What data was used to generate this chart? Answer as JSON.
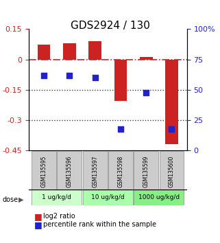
{
  "title": "GDS2924 / 130",
  "samples": [
    "GSM135595",
    "GSM135596",
    "GSM135597",
    "GSM135598",
    "GSM135599",
    "GSM135600"
  ],
  "log2_ratio": [
    0.072,
    0.082,
    0.092,
    -0.205,
    0.012,
    -0.418
  ],
  "percentile_rank": [
    62,
    62,
    60,
    18,
    48,
    18
  ],
  "ylim_left": [
    -0.45,
    0.15
  ],
  "ylim_right": [
    0,
    100
  ],
  "yticks_left": [
    0.15,
    0,
    -0.15,
    -0.3,
    -0.45
  ],
  "yticks_right": [
    100,
    75,
    50,
    25,
    0
  ],
  "bar_color": "#cc2222",
  "dot_color": "#2222cc",
  "dose_groups": [
    {
      "label": "1 ug/kg/d",
      "cols": [
        0,
        1
      ],
      "color": "#ccffcc"
    },
    {
      "label": "10 ug/kg/d",
      "cols": [
        2,
        3
      ],
      "color": "#aaffaa"
    },
    {
      "label": "1000 ug/kg/d",
      "cols": [
        4,
        5
      ],
      "color": "#88ee88"
    }
  ],
  "dose_label": "dose",
  "legend_bar_label": "log2 ratio",
  "legend_dot_label": "percentile rank within the sample",
  "hline_zero_color": "#cc2222",
  "hline_dotted_color": "#333333",
  "bg_color": "#ffffff",
  "sample_box_color": "#cccccc"
}
